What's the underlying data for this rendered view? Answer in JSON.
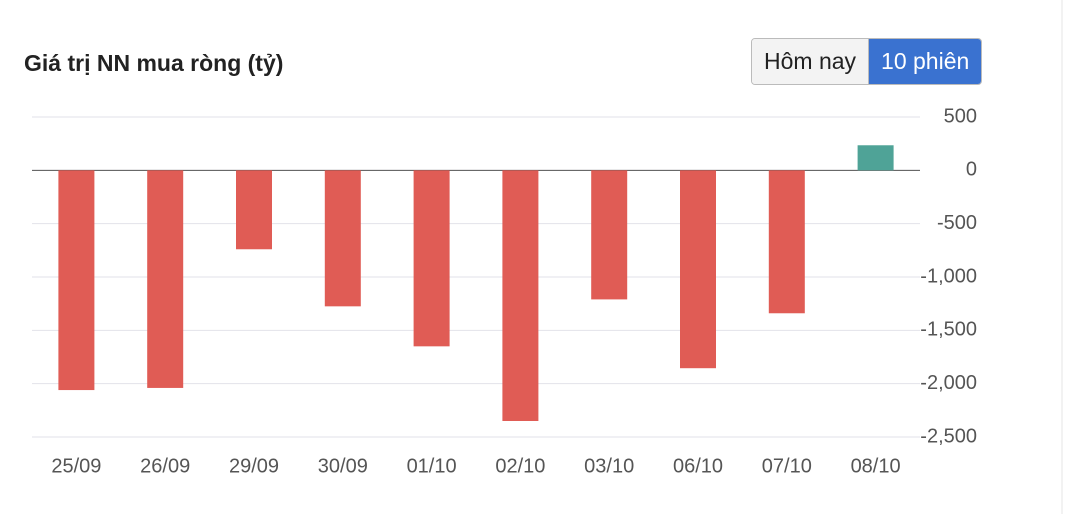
{
  "chart_data": {
    "type": "bar",
    "title": "Giá trị NN mua ròng (tỷ)",
    "categories": [
      "25/09",
      "26/09",
      "29/09",
      "30/09",
      "01/10",
      "02/10",
      "03/10",
      "06/10",
      "07/10",
      "08/10"
    ],
    "values": [
      -2060,
      -2040,
      -740,
      -1275,
      -1650,
      -2350,
      -1210,
      -1855,
      -1340,
      235
    ],
    "colors": {
      "positive": "#4fa397",
      "negative": "#e05c55"
    },
    "ylim": [
      -2500,
      500
    ],
    "yticks": [
      500,
      0,
      -500,
      {
        "value": -1000,
        "label": "-1,000"
      },
      {
        "value": -1500,
        "label": "-1,500"
      },
      {
        "value": -2000,
        "label": "-2,000"
      },
      {
        "value": -2500,
        "label": "-2,500"
      }
    ],
    "grid": true
  },
  "controls": {
    "buttons": [
      "Hôm nay",
      "10 phiên"
    ],
    "active": 1
  }
}
